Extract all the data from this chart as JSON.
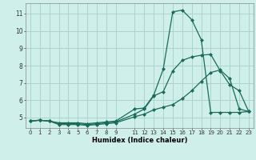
{
  "xlabel": "Humidex (Indice chaleur)",
  "bg_color": "#cff0ea",
  "grid_color": "#aed4ce",
  "line_color": "#1a6b5a",
  "x_ticks": [
    0,
    1,
    2,
    3,
    4,
    5,
    6,
    7,
    8,
    9,
    11,
    12,
    13,
    14,
    15,
    16,
    17,
    18,
    19,
    20,
    21,
    22,
    23
  ],
  "y_ticks": [
    5,
    6,
    7,
    8,
    9,
    10,
    11
  ],
  "xlim": [
    -0.5,
    23.5
  ],
  "ylim": [
    4.4,
    11.6
  ],
  "series1_x": [
    0,
    1,
    2,
    3,
    4,
    5,
    6,
    7,
    8,
    9,
    11,
    12,
    13,
    14,
    15,
    16,
    17,
    18,
    19,
    20,
    21,
    22,
    23
  ],
  "series1_y": [
    4.8,
    4.85,
    4.8,
    4.7,
    4.7,
    4.7,
    4.65,
    4.7,
    4.75,
    4.8,
    5.5,
    5.55,
    6.3,
    7.8,
    11.1,
    11.2,
    10.65,
    9.5,
    5.3,
    5.3,
    5.3,
    5.3,
    5.35
  ],
  "series2_x": [
    0,
    1,
    2,
    3,
    4,
    5,
    6,
    7,
    8,
    9,
    11,
    12,
    13,
    14,
    15,
    16,
    17,
    18,
    19,
    20,
    21,
    22,
    23
  ],
  "series2_y": [
    4.8,
    4.85,
    4.8,
    4.65,
    4.65,
    4.65,
    4.6,
    4.65,
    4.7,
    4.75,
    5.2,
    5.5,
    6.25,
    6.5,
    7.7,
    8.3,
    8.5,
    8.6,
    8.65,
    7.7,
    6.9,
    6.55,
    5.35
  ],
  "series3_x": [
    0,
    1,
    2,
    3,
    4,
    5,
    6,
    7,
    8,
    9,
    11,
    12,
    13,
    14,
    15,
    16,
    17,
    18,
    19,
    20,
    21,
    22,
    23
  ],
  "series3_y": [
    4.8,
    4.85,
    4.8,
    4.6,
    4.6,
    4.6,
    4.55,
    4.6,
    4.65,
    4.7,
    5.05,
    5.2,
    5.45,
    5.6,
    5.75,
    6.1,
    6.55,
    7.1,
    7.6,
    7.75,
    7.25,
    5.5,
    5.35
  ]
}
